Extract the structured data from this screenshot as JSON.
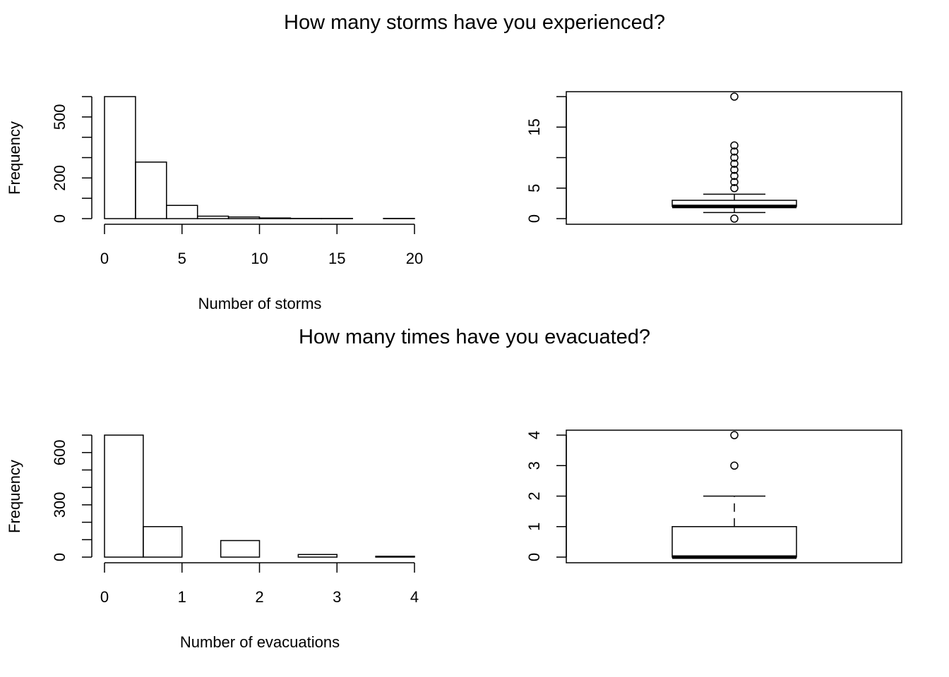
{
  "figure": {
    "title_top": "How many storms have you experienced?",
    "title_bottom": "How many times have you evacuated?"
  },
  "chart_data": [
    {
      "type": "bar",
      "subtype": "histogram",
      "title": "How many storms have you experienced?",
      "xlabel": "Number of storms",
      "ylabel": "Frequency",
      "bins": [
        [
          0,
          2
        ],
        [
          2,
          4
        ],
        [
          4,
          6
        ],
        [
          6,
          8
        ],
        [
          8,
          10
        ],
        [
          10,
          12
        ],
        [
          12,
          14
        ],
        [
          14,
          16
        ],
        [
          16,
          18
        ],
        [
          18,
          20
        ]
      ],
      "values": [
        600,
        278,
        65,
        12,
        8,
        3,
        1,
        1,
        0,
        1
      ],
      "xlim": [
        0,
        20
      ],
      "ylim": [
        0,
        600
      ],
      "x_ticks": [
        0,
        5,
        10,
        15,
        20
      ],
      "y_ticks": [
        0,
        100,
        200,
        300,
        400,
        500,
        600
      ],
      "y_tick_labels": [
        "0",
        "",
        "200",
        "",
        "",
        "500",
        ""
      ],
      "grid": false
    },
    {
      "type": "boxplot",
      "title": "How many storms have you experienced?",
      "median": 2,
      "q1": 2,
      "q3": 3,
      "whisker_low": 1,
      "whisker_high": 4,
      "outliers": [
        0,
        5,
        6,
        7,
        8,
        9,
        10,
        11,
        12,
        20
      ],
      "ylim": [
        0,
        20
      ],
      "y_ticks": [
        0,
        5,
        10,
        15,
        20
      ],
      "y_tick_labels": [
        "0",
        "5",
        "",
        "15",
        ""
      ],
      "grid": false
    },
    {
      "type": "bar",
      "subtype": "histogram",
      "title": "How many times have you evacuated?",
      "xlabel": "Number of evacuations",
      "ylabel": "Frequency",
      "bins": [
        [
          0,
          0.5
        ],
        [
          0.5,
          1
        ],
        [
          1,
          1.5
        ],
        [
          1.5,
          2
        ],
        [
          2,
          2.5
        ],
        [
          2.5,
          3
        ],
        [
          3,
          3.5
        ],
        [
          3.5,
          4
        ]
      ],
      "values": [
        700,
        175,
        0,
        95,
        0,
        15,
        0,
        5
      ],
      "xlim": [
        0,
        4
      ],
      "ylim": [
        0,
        700
      ],
      "x_ticks": [
        0,
        1,
        2,
        3,
        4
      ],
      "y_ticks": [
        0,
        100,
        200,
        300,
        400,
        500,
        600,
        700
      ],
      "y_tick_labels": [
        "0",
        "",
        "",
        "300",
        "",
        "",
        "600",
        ""
      ],
      "grid": false
    },
    {
      "type": "boxplot",
      "title": "How many times have you evacuated?",
      "median": 0,
      "q1": 0,
      "q3": 1,
      "whisker_low": 0,
      "whisker_high": 2,
      "outliers": [
        3,
        4
      ],
      "ylim": [
        0,
        4
      ],
      "y_ticks": [
        0,
        1,
        2,
        3,
        4
      ],
      "y_tick_labels": [
        "0",
        "1",
        "2",
        "3",
        "4"
      ],
      "grid": false
    }
  ]
}
